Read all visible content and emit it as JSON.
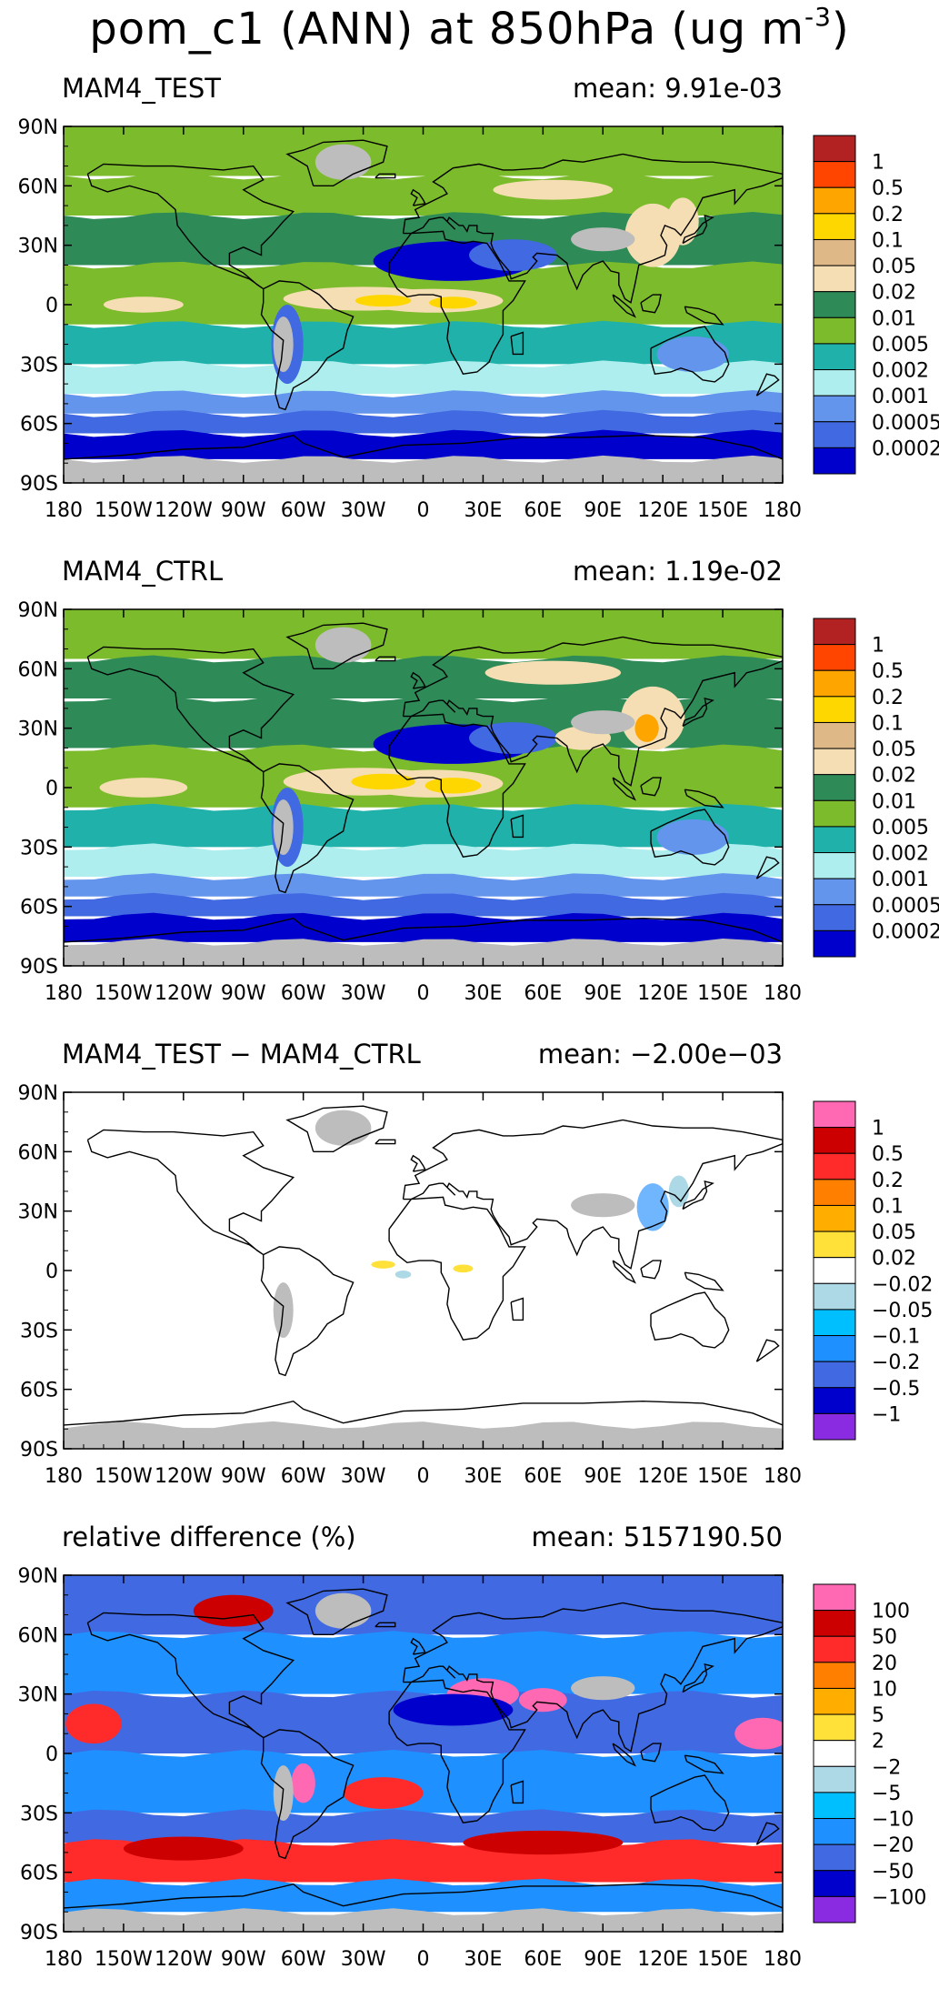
{
  "figure": {
    "title_main": "pom_c1 (ANN) at 850hPa (ug m",
    "title_sup": "-3",
    "title_end": ")"
  },
  "colors": {
    "land_missing": "#bdbdbd",
    "coast": "#000000"
  },
  "chart_data": [
    {
      "type": "heatmap",
      "title": "MAM4_TEST",
      "subtitle": "mean: 9.91e-03",
      "x_ticks": [
        "180",
        "150W",
        "120W",
        "90W",
        "60W",
        "30W",
        "0",
        "30E",
        "60E",
        "90E",
        "120E",
        "150E",
        "180"
      ],
      "y_ticks": [
        "90N",
        "60N",
        "30N",
        "0",
        "30S",
        "60S",
        "90S"
      ],
      "xlim": [
        -180,
        180
      ],
      "ylim": [
        -90,
        90
      ],
      "colorbar": {
        "labels": [
          "1",
          "0.5",
          "0.2",
          "0.1",
          "0.05",
          "0.02",
          "0.01",
          "0.005",
          "0.002",
          "0.001",
          "0.0005",
          "0.0002"
        ],
        "colors": [
          "#b22222",
          "#ff4500",
          "#ffa500",
          "#ffd700",
          "#deb887",
          "#f5deb3",
          "#2e8b57",
          "#7cbc2c",
          "#20b2aa",
          "#afeeee",
          "#6495ed",
          "#4169e1",
          "#0000cd"
        ]
      },
      "zonal_bands": [
        {
          "lat": [
            65,
            90
          ],
          "color": "#7cbc2c"
        },
        {
          "lat": [
            45,
            65
          ],
          "color": "#7cbc2c"
        },
        {
          "lat": [
            20,
            45
          ],
          "color": "#2e8b57"
        },
        {
          "lat": [
            -10,
            20
          ],
          "color": "#7cbc2c"
        },
        {
          "lat": [
            -30,
            -10
          ],
          "color": "#20b2aa"
        },
        {
          "lat": [
            -45,
            -30
          ],
          "color": "#afeeee"
        },
        {
          "lat": [
            -55,
            -45
          ],
          "color": "#6495ed"
        },
        {
          "lat": [
            -65,
            -55
          ],
          "color": "#4169e1"
        },
        {
          "lat": [
            -78,
            -65
          ],
          "color": "#0000cd"
        },
        {
          "lat": [
            -90,
            -78
          ],
          "color": "#bdbdbd"
        }
      ],
      "features": [
        {
          "lon": 15,
          "lat": 22,
          "w": 40,
          "h": 10,
          "color": "#0000cd"
        },
        {
          "lon": 45,
          "lat": 25,
          "w": 22,
          "h": 8,
          "color": "#4169e1"
        },
        {
          "lon": -30,
          "lat": 3,
          "w": 40,
          "h": 6,
          "color": "#f5deb3"
        },
        {
          "lon": 5,
          "lat": 2,
          "w": 35,
          "h": 6,
          "color": "#f5deb3"
        },
        {
          "lon": -20,
          "lat": 2,
          "w": 14,
          "h": 3,
          "color": "#ffd700"
        },
        {
          "lon": 15,
          "lat": 1,
          "w": 12,
          "h": 3,
          "color": "#ffd700"
        },
        {
          "lon": 115,
          "lat": 35,
          "w": 14,
          "h": 16,
          "color": "#f5deb3"
        },
        {
          "lon": 130,
          "lat": 42,
          "w": 8,
          "h": 12,
          "color": "#f5deb3"
        },
        {
          "lon": 65,
          "lat": 58,
          "w": 30,
          "h": 5,
          "color": "#f5deb3"
        },
        {
          "lon": -140,
          "lat": 0,
          "w": 20,
          "h": 4,
          "color": "#f5deb3"
        },
        {
          "lon": -68,
          "lat": -20,
          "w": 8,
          "h": 20,
          "color": "#4169e1"
        },
        {
          "lon": 135,
          "lat": -25,
          "w": 18,
          "h": 9,
          "color": "#6495ed"
        },
        {
          "lon": -40,
          "lat": 72,
          "w": 14,
          "h": 9,
          "color": "#bdbdbd"
        },
        {
          "lon": 90,
          "lat": 33,
          "w": 16,
          "h": 6,
          "color": "#bdbdbd"
        },
        {
          "lon": -70,
          "lat": -20,
          "w": 5,
          "h": 14,
          "color": "#bdbdbd"
        }
      ]
    },
    {
      "type": "heatmap",
      "title": "MAM4_CTRL",
      "subtitle": "mean: 1.19e-02",
      "x_ticks": [
        "180",
        "150W",
        "120W",
        "90W",
        "60W",
        "30W",
        "0",
        "30E",
        "60E",
        "90E",
        "120E",
        "150E",
        "180"
      ],
      "y_ticks": [
        "90N",
        "60N",
        "30N",
        "0",
        "30S",
        "60S",
        "90S"
      ],
      "xlim": [
        -180,
        180
      ],
      "ylim": [
        -90,
        90
      ],
      "colorbar": {
        "labels": [
          "1",
          "0.5",
          "0.2",
          "0.1",
          "0.05",
          "0.02",
          "0.01",
          "0.005",
          "0.002",
          "0.001",
          "0.0005",
          "0.0002"
        ],
        "colors": [
          "#b22222",
          "#ff4500",
          "#ffa500",
          "#ffd700",
          "#deb887",
          "#f5deb3",
          "#2e8b57",
          "#7cbc2c",
          "#20b2aa",
          "#afeeee",
          "#6495ed",
          "#4169e1",
          "#0000cd"
        ]
      },
      "zonal_bands": [
        {
          "lat": [
            65,
            90
          ],
          "color": "#7cbc2c"
        },
        {
          "lat": [
            45,
            65
          ],
          "color": "#2e8b57"
        },
        {
          "lat": [
            20,
            45
          ],
          "color": "#2e8b57"
        },
        {
          "lat": [
            -10,
            20
          ],
          "color": "#7cbc2c"
        },
        {
          "lat": [
            -30,
            -10
          ],
          "color": "#20b2aa"
        },
        {
          "lat": [
            -45,
            -30
          ],
          "color": "#afeeee"
        },
        {
          "lat": [
            -55,
            -45
          ],
          "color": "#6495ed"
        },
        {
          "lat": [
            -65,
            -55
          ],
          "color": "#4169e1"
        },
        {
          "lat": [
            -78,
            -65
          ],
          "color": "#0000cd"
        },
        {
          "lat": [
            -90,
            -78
          ],
          "color": "#bdbdbd"
        }
      ],
      "features": [
        {
          "lon": 15,
          "lat": 22,
          "w": 40,
          "h": 10,
          "color": "#0000cd"
        },
        {
          "lon": 45,
          "lat": 25,
          "w": 22,
          "h": 8,
          "color": "#4169e1"
        },
        {
          "lon": -30,
          "lat": 3,
          "w": 40,
          "h": 7,
          "color": "#f5deb3"
        },
        {
          "lon": 5,
          "lat": 2,
          "w": 35,
          "h": 7,
          "color": "#f5deb3"
        },
        {
          "lon": -20,
          "lat": 3,
          "w": 16,
          "h": 4,
          "color": "#ffd700"
        },
        {
          "lon": 15,
          "lat": 1,
          "w": 14,
          "h": 4,
          "color": "#ffd700"
        },
        {
          "lon": 115,
          "lat": 35,
          "w": 16,
          "h": 16,
          "color": "#f5deb3"
        },
        {
          "lon": 112,
          "lat": 30,
          "w": 6,
          "h": 7,
          "color": "#ffa500"
        },
        {
          "lon": 80,
          "lat": 25,
          "w": 14,
          "h": 6,
          "color": "#f5deb3"
        },
        {
          "lon": 65,
          "lat": 58,
          "w": 34,
          "h": 6,
          "color": "#f5deb3"
        },
        {
          "lon": -140,
          "lat": 0,
          "w": 22,
          "h": 5,
          "color": "#f5deb3"
        },
        {
          "lon": -68,
          "lat": -20,
          "w": 8,
          "h": 20,
          "color": "#4169e1"
        },
        {
          "lon": 135,
          "lat": -25,
          "w": 18,
          "h": 9,
          "color": "#6495ed"
        },
        {
          "lon": -40,
          "lat": 72,
          "w": 14,
          "h": 9,
          "color": "#bdbdbd"
        },
        {
          "lon": 90,
          "lat": 33,
          "w": 16,
          "h": 6,
          "color": "#bdbdbd"
        },
        {
          "lon": -70,
          "lat": -20,
          "w": 5,
          "h": 14,
          "color": "#bdbdbd"
        }
      ]
    },
    {
      "type": "heatmap",
      "title": "MAM4_TEST − MAM4_CTRL",
      "subtitle": "mean: −2.00e−03",
      "x_ticks": [
        "180",
        "150W",
        "120W",
        "90W",
        "60W",
        "30W",
        "0",
        "30E",
        "60E",
        "90E",
        "120E",
        "150E",
        "180"
      ],
      "y_ticks": [
        "90N",
        "60N",
        "30N",
        "0",
        "30S",
        "60S",
        "90S"
      ],
      "xlim": [
        -180,
        180
      ],
      "ylim": [
        -90,
        90
      ],
      "colorbar": {
        "labels": [
          "1",
          "0.5",
          "0.2",
          "0.1",
          "0.05",
          "0.02",
          "−0.02",
          "−0.05",
          "−0.1",
          "−0.2",
          "−0.5",
          "−1"
        ],
        "colors": [
          "#ff69b4",
          "#cc0000",
          "#ff2a2a",
          "#ff7f00",
          "#ffae00",
          "#ffe13a",
          "#ffffff",
          "#add8e6",
          "#00bfff",
          "#1e90ff",
          "#4169e1",
          "#0000cd",
          "#8a2be2"
        ]
      },
      "zonal_bands": [
        {
          "lat": [
            -78,
            90
          ],
          "color": "#ffffff"
        },
        {
          "lat": [
            -90,
            -78
          ],
          "color": "#bdbdbd"
        }
      ],
      "features": [
        {
          "lon": 115,
          "lat": 32,
          "w": 8,
          "h": 12,
          "color": "#6fb6ff"
        },
        {
          "lon": 128,
          "lat": 40,
          "w": 5,
          "h": 8,
          "color": "#add8e6"
        },
        {
          "lon": -20,
          "lat": 3,
          "w": 6,
          "h": 2,
          "color": "#ffe13a"
        },
        {
          "lon": 20,
          "lat": 1,
          "w": 5,
          "h": 2,
          "color": "#ffe13a"
        },
        {
          "lon": -10,
          "lat": -2,
          "w": 4,
          "h": 2,
          "color": "#add8e6"
        },
        {
          "lon": -40,
          "lat": 72,
          "w": 14,
          "h": 9,
          "color": "#bdbdbd"
        },
        {
          "lon": 90,
          "lat": 33,
          "w": 16,
          "h": 6,
          "color": "#bdbdbd"
        },
        {
          "lon": -70,
          "lat": -20,
          "w": 5,
          "h": 14,
          "color": "#bdbdbd"
        }
      ]
    },
    {
      "type": "heatmap",
      "title": "relative difference (%)",
      "subtitle": "mean: 5157190.50",
      "x_ticks": [
        "180",
        "150W",
        "120W",
        "90W",
        "60W",
        "30W",
        "0",
        "30E",
        "60E",
        "90E",
        "120E",
        "150E",
        "180"
      ],
      "y_ticks": [
        "90N",
        "60N",
        "30N",
        "0",
        "30S",
        "60S",
        "90S"
      ],
      "xlim": [
        -180,
        180
      ],
      "ylim": [
        -90,
        90
      ],
      "colorbar": {
        "labels": [
          "100",
          "50",
          "20",
          "10",
          "5",
          "2",
          "−2",
          "−5",
          "−10",
          "−20",
          "−50",
          "−100"
        ],
        "colors": [
          "#ff69b4",
          "#cc0000",
          "#ff2a2a",
          "#ff7f00",
          "#ffae00",
          "#ffe13a",
          "#ffffff",
          "#add8e6",
          "#00bfff",
          "#1e90ff",
          "#4169e1",
          "#0000cd",
          "#8a2be2"
        ]
      },
      "zonal_bands": [
        {
          "lat": [
            60,
            90
          ],
          "color": "#4169e1"
        },
        {
          "lat": [
            30,
            60
          ],
          "color": "#1e90ff"
        },
        {
          "lat": [
            0,
            30
          ],
          "color": "#4169e1"
        },
        {
          "lat": [
            -30,
            0
          ],
          "color": "#1e90ff"
        },
        {
          "lat": [
            -45,
            -30
          ],
          "color": "#4169e1"
        },
        {
          "lat": [
            -65,
            -45
          ],
          "color": "#ff2a2a"
        },
        {
          "lat": [
            -80,
            -65
          ],
          "color": "#1e90ff"
        },
        {
          "lat": [
            -90,
            -80
          ],
          "color": "#bdbdbd"
        }
      ],
      "features": [
        {
          "lon": -95,
          "lat": 72,
          "w": 20,
          "h": 8,
          "color": "#cc0000"
        },
        {
          "lon": 30,
          "lat": 30,
          "w": 18,
          "h": 8,
          "color": "#ff69b4"
        },
        {
          "lon": 60,
          "lat": 27,
          "w": 12,
          "h": 6,
          "color": "#ff69b4"
        },
        {
          "lon": -60,
          "lat": -15,
          "w": 6,
          "h": 10,
          "color": "#ff69b4"
        },
        {
          "lon": 170,
          "lat": 10,
          "w": 14,
          "h": 8,
          "color": "#ff69b4"
        },
        {
          "lon": -165,
          "lat": 15,
          "w": 14,
          "h": 10,
          "color": "#ff2a2a"
        },
        {
          "lon": -20,
          "lat": -20,
          "w": 20,
          "h": 8,
          "color": "#ff2a2a"
        },
        {
          "lon": 60,
          "lat": -45,
          "w": 40,
          "h": 6,
          "color": "#cc0000"
        },
        {
          "lon": -120,
          "lat": -48,
          "w": 30,
          "h": 6,
          "color": "#cc0000"
        },
        {
          "lon": 15,
          "lat": 22,
          "w": 30,
          "h": 8,
          "color": "#0000cd"
        },
        {
          "lon": -40,
          "lat": 72,
          "w": 14,
          "h": 9,
          "color": "#bdbdbd"
        },
        {
          "lon": 90,
          "lat": 33,
          "w": 16,
          "h": 6,
          "color": "#bdbdbd"
        },
        {
          "lon": -70,
          "lat": -20,
          "w": 5,
          "h": 14,
          "color": "#bdbdbd"
        }
      ]
    }
  ]
}
